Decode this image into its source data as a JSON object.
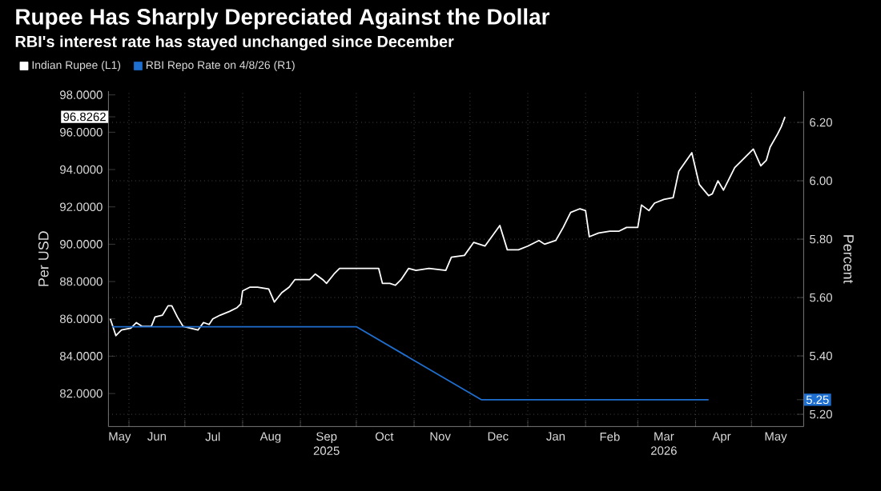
{
  "chart_data": {
    "type": "line",
    "title": "Rupee Has Sharply Depreciated Against the Dollar",
    "subtitle": "RBI's interest rate has stayed unchanged since December",
    "ylabel": "Per USD",
    "y2label": "Percent",
    "xlim": [
      "2025-05-21",
      "2026-05-29"
    ],
    "xticks": [
      {
        "value": "2025-06-01",
        "label": null
      },
      {
        "value": "2025-07-01",
        "label": null
      },
      {
        "value": "2025-08-01",
        "label": null
      },
      {
        "value": "2025-09-01",
        "label": null
      },
      {
        "value": "2025-10-01",
        "label": null
      },
      {
        "value": "2025-11-01",
        "label": null
      },
      {
        "value": "2025-12-01",
        "label": null
      },
      {
        "value": "2026-01-01",
        "label": null
      },
      {
        "value": "2026-02-01",
        "label": null
      },
      {
        "value": "2026-03-01",
        "label": null
      },
      {
        "value": "2026-04-01",
        "label": null
      },
      {
        "value": "2026-05-01",
        "label": null
      },
      {
        "value": "2025-05-27",
        "label": "May"
      },
      {
        "value": "2025-06-16",
        "label": "Jun"
      },
      {
        "value": "2025-07-16",
        "label": "Jul"
      },
      {
        "value": "2025-08-16",
        "label": "Aug"
      },
      {
        "value": "2025-09-15",
        "label": "Sep 2025"
      },
      {
        "value": "2025-10-16",
        "label": "Oct"
      },
      {
        "value": "2025-11-15",
        "label": "Nov"
      },
      {
        "value": "2025-12-16",
        "label": "Dec"
      },
      {
        "value": "2026-01-16",
        "label": "Jan"
      },
      {
        "value": "2026-02-14",
        "label": "Feb"
      },
      {
        "value": "2026-03-15",
        "label": "Mar 2026"
      },
      {
        "value": "2026-04-15",
        "label": "Apr"
      },
      {
        "value": "2026-05-14",
        "label": "May"
      }
    ],
    "ylim": [
      80.23,
      98.2
    ],
    "yticks": [
      {
        "value": 82,
        "label": "82.0000"
      },
      {
        "value": 84,
        "label": "84.0000"
      },
      {
        "value": 86,
        "label": "86.0000"
      },
      {
        "value": 88,
        "label": "88.0000"
      },
      {
        "value": 90,
        "label": "90.0000"
      },
      {
        "value": 92,
        "label": "92.0000"
      },
      {
        "value": 94,
        "label": "94.0000"
      },
      {
        "value": 96,
        "label": "96.0000"
      },
      {
        "value": 98,
        "label": "98.0000"
      },
      {
        "value": 96.8262,
        "label": "96.8262"
      }
    ],
    "y2lim": [
      5.158,
      6.307
    ],
    "y2ticks": [
      {
        "value": 5.2,
        "label": "5.20"
      },
      {
        "value": 5.4,
        "label": "5.40"
      },
      {
        "value": 5.6,
        "label": "5.60"
      },
      {
        "value": 5.8,
        "label": "5.80"
      },
      {
        "value": 6.0,
        "label": "6.00"
      },
      {
        "value": 6.2,
        "label": "6.20"
      },
      {
        "value": 5.25,
        "label": "5.25"
      }
    ],
    "grid": true,
    "legend": "top left",
    "series": [
      {
        "name": "Indian Rupee (L1)",
        "color": "#ffffff",
        "x": [
          "2025-05-22",
          "2025-05-23",
          "2025-05-25",
          "2025-05-28",
          "2025-06-02",
          "2025-06-05",
          "2025-06-08",
          "2025-06-13",
          "2025-06-15",
          "2025-06-19",
          "2025-06-22",
          "2025-06-24",
          "2025-06-27",
          "2025-06-30",
          "2025-07-04",
          "2025-07-08",
          "2025-07-11",
          "2025-07-14",
          "2025-07-16",
          "2025-07-20",
          "2025-07-25",
          "2025-07-29",
          "2025-07-31",
          "2025-08-01",
          "2025-08-05",
          "2025-08-09",
          "2025-08-15",
          "2025-08-18",
          "2025-08-22",
          "2025-08-26",
          "2025-08-29",
          "2025-09-03",
          "2025-09-06",
          "2025-09-09",
          "2025-09-13",
          "2025-09-15",
          "2025-09-19",
          "2025-09-22",
          "2025-10-05",
          "2025-10-13",
          "2025-10-15",
          "2025-10-19",
          "2025-10-22",
          "2025-10-25",
          "2025-10-29",
          "2025-11-02",
          "2025-11-09",
          "2025-11-18",
          "2025-11-21",
          "2025-11-28",
          "2025-12-03",
          "2025-12-09",
          "2025-12-17",
          "2025-12-21",
          "2025-12-27",
          "2026-01-01",
          "2026-01-07",
          "2026-01-10",
          "2026-01-16",
          "2026-01-20",
          "2026-01-24",
          "2026-01-29",
          "2026-02-01",
          "2026-02-03",
          "2026-02-08",
          "2026-02-14",
          "2026-02-19",
          "2026-02-23",
          "2026-03-01",
          "2026-03-03",
          "2026-03-07",
          "2026-03-10",
          "2026-03-15",
          "2026-03-20",
          "2026-03-23",
          "2026-03-30",
          "2026-04-03",
          "2026-04-08",
          "2026-04-10",
          "2026-04-13",
          "2026-04-16",
          "2026-04-22",
          "2026-04-26",
          "2026-05-02",
          "2026-05-06",
          "2026-05-09",
          "2026-05-11",
          "2026-05-15",
          "2026-05-17",
          "2026-05-19"
        ],
        "values": [
          86.0,
          85.7,
          85.1,
          85.4,
          85.5,
          85.8,
          85.6,
          85.6,
          86.1,
          86.2,
          86.7,
          86.7,
          86.1,
          85.6,
          85.5,
          85.4,
          85.8,
          85.7,
          86.0,
          86.2,
          86.4,
          86.6,
          86.8,
          87.5,
          87.7,
          87.7,
          87.6,
          86.9,
          87.4,
          87.7,
          88.1,
          88.1,
          88.1,
          88.4,
          88.1,
          87.9,
          88.4,
          88.7,
          88.7,
          88.7,
          87.9,
          87.9,
          87.8,
          88.1,
          88.7,
          88.6,
          88.7,
          88.6,
          89.3,
          89.4,
          90.1,
          89.9,
          91.0,
          89.7,
          89.7,
          89.9,
          90.2,
          90.0,
          90.2,
          90.9,
          91.7,
          91.9,
          91.8,
          90.4,
          90.6,
          90.7,
          90.7,
          90.9,
          90.9,
          92.1,
          91.8,
          92.2,
          92.4,
          92.5,
          93.9,
          94.9,
          93.2,
          92.6,
          92.7,
          93.4,
          92.9,
          94.1,
          94.5,
          95.1,
          94.2,
          94.5,
          95.2,
          95.9,
          96.3,
          96.8262
        ]
      },
      {
        "name": "RBI Repo Rate on 4/8/26 (R1)",
        "color": "#1f6fd0",
        "axis": "y2",
        "x": [
          "2025-05-23",
          "2025-10-01",
          "2025-12-07",
          "2026-04-08"
        ],
        "values": [
          5.5,
          5.5,
          5.25,
          5.25
        ]
      }
    ]
  }
}
